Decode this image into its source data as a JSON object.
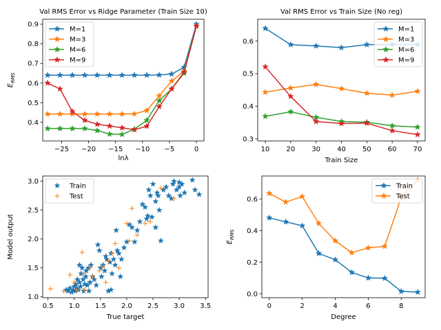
{
  "chart_data": [
    {
      "type": "line",
      "title": "Val RMS Error vs Ridge Parameter (Train Size 10)",
      "xlabel": "lnλ",
      "ylabel": "E_RMS",
      "xlim": [
        -28.5,
        1.4
      ],
      "ylim": [
        0.305,
        0.925
      ],
      "xticks": [
        -25,
        -20,
        -15,
        -10,
        -5,
        0
      ],
      "xtick_labels": [
        "−25",
        "−20",
        "−15",
        "−10",
        "−5",
        "0"
      ],
      "yticks": [
        0.4,
        0.5,
        0.6,
        0.7,
        0.8,
        0.9
      ],
      "ytick_labels": [
        "0.4",
        "0.5",
        "0.6",
        "0.7",
        "0.8",
        "0.9"
      ],
      "legend": "top-left",
      "grid": false,
      "x": [
        -27.6,
        -25.3,
        -23.0,
        -20.7,
        -18.4,
        -16.1,
        -13.8,
        -11.5,
        -9.2,
        -6.9,
        -4.6,
        -2.3,
        0
      ],
      "series": [
        {
          "name": "M=1",
          "color": "#1f77b4",
          "values": [
            0.64,
            0.64,
            0.64,
            0.64,
            0.64,
            0.64,
            0.64,
            0.64,
            0.64,
            0.641,
            0.646,
            0.68,
            0.9
          ]
        },
        {
          "name": "M=3",
          "color": "#ff7f0e",
          "values": [
            0.442,
            0.442,
            0.442,
            0.442,
            0.442,
            0.442,
            0.442,
            0.443,
            0.46,
            0.535,
            0.61,
            0.66,
            0.89
          ]
        },
        {
          "name": "M=6",
          "color": "#2ca02c",
          "values": [
            0.368,
            0.368,
            0.368,
            0.368,
            0.358,
            0.34,
            0.338,
            0.365,
            0.41,
            0.51,
            0.57,
            0.65,
            0.89
          ]
        },
        {
          "name": "M=9",
          "color": "#d62728",
          "values": [
            0.6,
            0.57,
            0.455,
            0.41,
            0.39,
            0.381,
            0.372,
            0.362,
            0.38,
            0.48,
            0.57,
            0.655,
            0.89
          ]
        }
      ]
    },
    {
      "type": "line",
      "title": "Val RMS Error vs Train Size (No reg)",
      "xlabel": "Train Size",
      "ylabel": "",
      "xlim": [
        7,
        73
      ],
      "ylim": [
        0.2935,
        0.667
      ],
      "xticks": [
        10,
        20,
        30,
        40,
        50,
        60,
        70
      ],
      "xtick_labels": [
        "10",
        "20",
        "30",
        "40",
        "50",
        "60",
        "70"
      ],
      "yticks": [
        0.3,
        0.4,
        0.5,
        0.6
      ],
      "ytick_labels": [
        "0.3",
        "0.4",
        "0.5",
        "0.6"
      ],
      "legend": "top-right",
      "grid": false,
      "x": [
        10,
        20,
        30,
        40,
        50,
        60,
        70
      ],
      "series": [
        {
          "name": "M=1",
          "color": "#1f77b4",
          "values": [
            0.639,
            0.589,
            0.585,
            0.58,
            0.589,
            0.59,
            0.59
          ]
        },
        {
          "name": "M=3",
          "color": "#ff7f0e",
          "values": [
            0.443,
            0.456,
            0.467,
            0.454,
            0.44,
            0.434,
            0.446
          ]
        },
        {
          "name": "M=6",
          "color": "#2ca02c",
          "values": [
            0.369,
            0.383,
            0.366,
            0.353,
            0.351,
            0.34,
            0.336
          ]
        },
        {
          "name": "M=9",
          "color": "#d62728",
          "values": [
            0.521,
            0.43,
            0.353,
            0.347,
            0.348,
            0.325,
            0.313
          ]
        }
      ]
    },
    {
      "type": "scatter",
      "title": "",
      "xlabel": "True target",
      "ylabel": "Model output",
      "xlim": [
        0.4,
        3.55
      ],
      "ylim": [
        0.985,
        3.09
      ],
      "xticks": [
        0.5,
        1.0,
        1.5,
        2.0,
        2.5,
        3.0,
        3.5
      ],
      "xtick_labels": [
        "0.5",
        "1.0",
        "1.5",
        "2.0",
        "2.5",
        "3.0",
        "3.5"
      ],
      "yticks": [
        1.0,
        1.5,
        2.0,
        2.5,
        3.0
      ],
      "ytick_labels": [
        "1.0",
        "1.5",
        "2.0",
        "2.5",
        "3.0"
      ],
      "legend": "top-left",
      "grid": false,
      "series": [
        {
          "name": "Train",
          "color": "#1f77b4",
          "marker": "star",
          "points": [
            [
              0.85,
              1.12
            ],
            [
              0.88,
              1.1
            ],
            [
              0.92,
              1.15
            ],
            [
              0.95,
              1.08
            ],
            [
              0.98,
              1.12
            ],
            [
              1.0,
              1.18
            ],
            [
              1.02,
              1.1
            ],
            [
              1.03,
              1.22
            ],
            [
              1.05,
              1.15
            ],
            [
              1.06,
              1.3
            ],
            [
              1.08,
              1.12
            ],
            [
              1.1,
              1.25
            ],
            [
              1.1,
              1.55
            ],
            [
              1.12,
              1.18
            ],
            [
              1.13,
              1.4
            ],
            [
              1.15,
              1.5
            ],
            [
              1.17,
              1.3
            ],
            [
              1.18,
              1.1
            ],
            [
              1.2,
              1.22
            ],
            [
              1.22,
              1.35
            ],
            [
              1.23,
              1.45
            ],
            [
              1.25,
              1.2
            ],
            [
              1.27,
              1.5
            ],
            [
              1.28,
              1.1
            ],
            [
              1.3,
              1.25
            ],
            [
              1.32,
              1.55
            ],
            [
              1.35,
              1.35
            ],
            [
              1.38,
              1.3
            ],
            [
              1.42,
              1.2
            ],
            [
              1.45,
              1.9
            ],
            [
              1.48,
              1.8
            ],
            [
              1.5,
              1.5
            ],
            [
              1.52,
              1.35
            ],
            [
              1.55,
              1.55
            ],
            [
              1.58,
              1.45
            ],
            [
              1.6,
              1.7
            ],
            [
              1.62,
              1.65
            ],
            [
              1.65,
              1.1
            ],
            [
              1.68,
              1.6
            ],
            [
              1.7,
              1.75
            ],
            [
              1.7,
              1.12
            ],
            [
              1.72,
              1.4
            ],
            [
              1.75,
              1.65
            ],
            [
              1.78,
              1.55
            ],
            [
              1.8,
              2.15
            ],
            [
              1.82,
              1.8
            ],
            [
              1.85,
              1.75
            ],
            [
              1.88,
              1.35
            ],
            [
              1.9,
              1.65
            ],
            [
              1.95,
              1.85
            ],
            [
              2.0,
              1.95
            ],
            [
              2.05,
              2.25
            ],
            [
              2.1,
              2.2
            ],
            [
              2.15,
              1.95
            ],
            [
              2.2,
              2.15
            ],
            [
              2.25,
              2.3
            ],
            [
              2.3,
              2.6
            ],
            [
              2.35,
              2.55
            ],
            [
              2.38,
              2.35
            ],
            [
              2.4,
              2.4
            ],
            [
              2.42,
              2.85
            ],
            [
              2.45,
              2.75
            ],
            [
              2.5,
              2.95
            ],
            [
              2.55,
              2.65
            ],
            [
              2.6,
              2.75
            ],
            [
              2.62,
              2.5
            ],
            [
              2.65,
              1.97
            ],
            [
              2.7,
              2.85
            ],
            [
              2.75,
              2.9
            ],
            [
              2.8,
              2.75
            ],
            [
              2.85,
              2.7
            ],
            [
              2.9,
              3.0
            ],
            [
              2.95,
              2.85
            ],
            [
              3.0,
              2.9
            ],
            [
              3.02,
              2.75
            ],
            [
              3.05,
              2.95
            ],
            [
              3.1,
              2.8
            ],
            [
              3.25,
              3.02
            ],
            [
              3.3,
              2.85
            ],
            [
              3.38,
              2.77
            ],
            [
              2.48,
              2.38
            ],
            [
              2.55,
              2.2
            ],
            [
              2.58,
              2.8
            ],
            [
              2.88,
              2.95
            ],
            [
              3.0,
              2.98
            ]
          ]
        },
        {
          "name": "Test",
          "color": "#ff7f0e",
          "marker": "plus",
          "points": [
            [
              0.55,
              1.14
            ],
            [
              0.8,
              1.1
            ],
            [
              0.92,
              1.38
            ],
            [
              1.0,
              1.25
            ],
            [
              1.05,
              1.12
            ],
            [
              1.15,
              1.77
            ],
            [
              1.18,
              1.4
            ],
            [
              1.2,
              1.12
            ],
            [
              1.3,
              1.5
            ],
            [
              1.35,
              1.35
            ],
            [
              1.48,
              1.45
            ],
            [
              1.55,
              1.52
            ],
            [
              1.6,
              1.25
            ],
            [
              1.65,
              1.62
            ],
            [
              1.72,
              1.75
            ],
            [
              1.78,
              1.92
            ],
            [
              1.85,
              1.5
            ],
            [
              2.0,
              2.27
            ],
            [
              2.05,
              1.97
            ],
            [
              2.1,
              2.53
            ],
            [
              2.2,
              2.07
            ],
            [
              2.35,
              2.27
            ],
            [
              2.45,
              2.3
            ],
            [
              2.65,
              2.88
            ],
            [
              2.9,
              2.7
            ]
          ]
        }
      ]
    },
    {
      "type": "line",
      "title": "",
      "xlabel": "Degree",
      "ylabel": "E_RMS",
      "xlim": [
        -0.45,
        9.45
      ],
      "ylim": [
        -0.025,
        0.745
      ],
      "xticks": [
        0,
        2,
        4,
        6,
        8
      ],
      "xtick_labels": [
        "0",
        "2",
        "4",
        "6",
        "8"
      ],
      "yticks": [
        0.0,
        0.2,
        0.4,
        0.6
      ],
      "ytick_labels": [
        "0.0",
        "0.2",
        "0.4",
        "0.6"
      ],
      "legend": "top-right",
      "grid": false,
      "x": [
        0,
        1,
        2,
        3,
        4,
        5,
        6,
        7,
        8,
        9
      ],
      "series": [
        {
          "name": "Train",
          "color": "#1f77b4",
          "values": [
            0.48,
            0.455,
            0.43,
            0.255,
            0.215,
            0.135,
            0.1,
            0.098,
            0.015,
            0.01
          ]
        },
        {
          "name": "Test",
          "color": "#ff7f0e",
          "values": [
            0.635,
            0.58,
            0.615,
            0.445,
            0.335,
            0.26,
            0.29,
            0.3,
            0.61,
            0.72
          ]
        }
      ]
    }
  ]
}
